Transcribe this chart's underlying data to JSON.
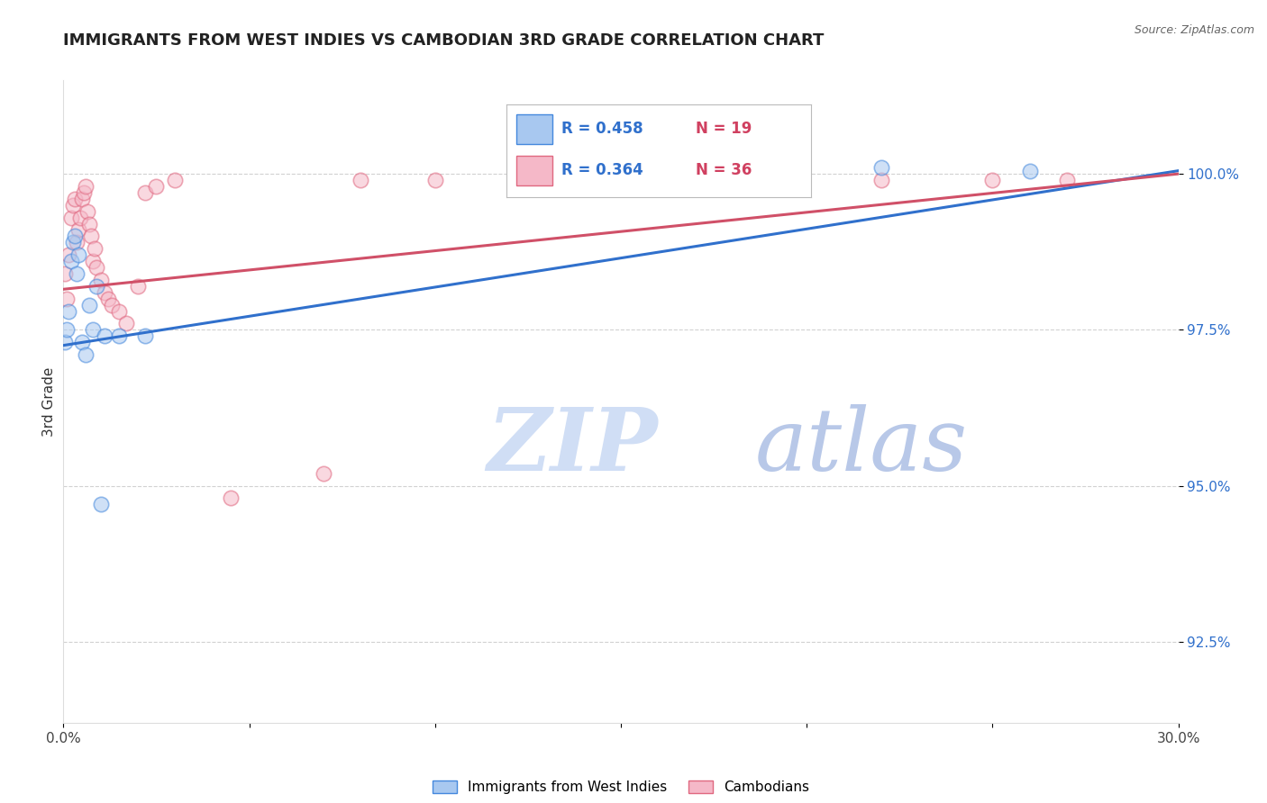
{
  "title": "IMMIGRANTS FROM WEST INDIES VS CAMBODIAN 3RD GRADE CORRELATION CHART",
  "source": "Source: ZipAtlas.com",
  "ylabel": "3rd Grade",
  "ylabel_ticks": [
    "92.5%",
    "95.0%",
    "97.5%",
    "100.0%"
  ],
  "xlim": [
    0.0,
    30.0
  ],
  "ylim": [
    91.2,
    101.5
  ],
  "ytick_vals": [
    92.5,
    95.0,
    97.5,
    100.0
  ],
  "blue_label": "Immigrants from West Indies",
  "pink_label": "Cambodians",
  "blue_R": "R = 0.458",
  "blue_N": "N = 19",
  "pink_R": "R = 0.364",
  "pink_N": "N = 36",
  "blue_x": [
    0.05,
    0.1,
    0.15,
    0.2,
    0.25,
    0.3,
    0.35,
    0.4,
    0.5,
    0.6,
    0.7,
    0.8,
    0.9,
    1.1,
    1.5,
    2.2,
    22.0,
    26.0,
    1.0
  ],
  "blue_y": [
    97.3,
    97.5,
    97.8,
    98.6,
    98.9,
    99.0,
    98.4,
    98.7,
    97.3,
    97.1,
    97.9,
    97.5,
    98.2,
    97.4,
    97.4,
    97.4,
    100.1,
    100.05,
    94.7
  ],
  "pink_x": [
    0.05,
    0.1,
    0.15,
    0.2,
    0.25,
    0.3,
    0.35,
    0.4,
    0.45,
    0.5,
    0.55,
    0.6,
    0.65,
    0.7,
    0.75,
    0.8,
    0.85,
    0.9,
    1.0,
    1.1,
    1.2,
    1.3,
    1.5,
    1.7,
    2.0,
    2.2,
    2.5,
    3.0,
    4.5,
    7.0,
    8.0,
    10.0,
    13.0,
    22.0,
    25.0,
    27.0
  ],
  "pink_y": [
    98.4,
    98.0,
    98.7,
    99.3,
    99.5,
    99.6,
    98.9,
    99.1,
    99.3,
    99.6,
    99.7,
    99.8,
    99.4,
    99.2,
    99.0,
    98.6,
    98.8,
    98.5,
    98.3,
    98.1,
    98.0,
    97.9,
    97.8,
    97.6,
    98.2,
    99.7,
    99.8,
    99.9,
    94.8,
    95.2,
    99.9,
    99.9,
    99.9,
    99.9,
    99.9,
    99.9
  ],
  "blue_color": "#A8C8F0",
  "pink_color": "#F5B8C8",
  "blue_edge_color": "#4488DD",
  "pink_edge_color": "#E06880",
  "blue_line_color": "#3070CC",
  "pink_line_color": "#D05068",
  "marker_size": 140,
  "alpha": 0.55,
  "line_width": 2.2,
  "grid_color": "#CCCCCC",
  "background_color": "#FFFFFF",
  "title_fontsize": 13,
  "watermark_zip_color": "#D0DEF5",
  "watermark_atlas_color": "#B8C8E8"
}
